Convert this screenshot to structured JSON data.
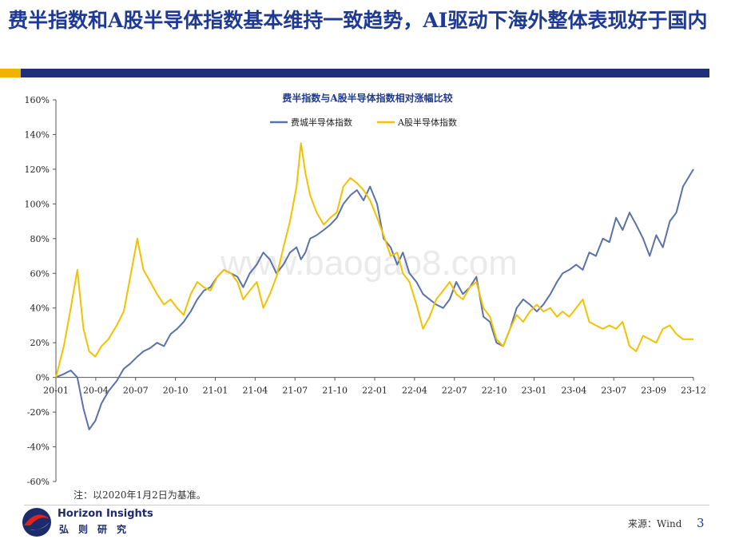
{
  "header": {
    "title": "费半指数和A股半导体指数基本维持一致趋势，AI驱动下海外整体表现好于国内"
  },
  "chart_data": {
    "type": "line",
    "title": "费半指数与A股半导体指数相对涨幅比较",
    "xlabel": "",
    "ylabel": "",
    "ylim": [
      -60,
      160
    ],
    "y_unit": "%",
    "y_ticks": [
      "160%",
      "140%",
      "120%",
      "100%",
      "80%",
      "60%",
      "40%",
      "20%",
      "0%",
      "-20%",
      "-40%",
      "-60%"
    ],
    "x_ticks": [
      "20-01",
      "20-04",
      "20-07",
      "20-10",
      "21-01",
      "21-04",
      "21-07",
      "21-10",
      "22-01",
      "22-04",
      "22-07",
      "22-10",
      "23-01",
      "23-04",
      "23-07",
      "23-09",
      "23-12"
    ],
    "legend_position": "top-center",
    "grid": false,
    "x_dates": [
      "2020-01-02",
      "2020-01-20",
      "2020-02-05",
      "2020-02-20",
      "2020-03-05",
      "2020-03-18",
      "2020-04-01",
      "2020-04-15",
      "2020-05-01",
      "2020-05-20",
      "2020-06-05",
      "2020-06-20",
      "2020-07-06",
      "2020-07-20",
      "2020-08-05",
      "2020-08-20",
      "2020-09-05",
      "2020-09-20",
      "2020-10-05",
      "2020-10-20",
      "2020-11-05",
      "2020-11-20",
      "2020-12-05",
      "2020-12-20",
      "2021-01-05",
      "2021-01-20",
      "2021-02-05",
      "2021-02-20",
      "2021-03-05",
      "2021-03-20",
      "2021-04-05",
      "2021-04-20",
      "2021-05-05",
      "2021-05-20",
      "2021-06-05",
      "2021-06-20",
      "2021-07-05",
      "2021-07-15",
      "2021-07-25",
      "2021-08-05",
      "2021-08-20",
      "2021-09-05",
      "2021-09-20",
      "2021-10-05",
      "2021-10-20",
      "2021-11-05",
      "2021-11-20",
      "2021-12-05",
      "2021-12-20",
      "2022-01-05",
      "2022-01-20",
      "2022-02-05",
      "2022-02-20",
      "2022-03-05",
      "2022-03-20",
      "2022-04-05",
      "2022-04-20",
      "2022-05-05",
      "2022-05-20",
      "2022-06-05",
      "2022-06-20",
      "2022-07-05",
      "2022-07-20",
      "2022-08-05",
      "2022-08-20",
      "2022-09-05",
      "2022-09-20",
      "2022-10-05",
      "2022-10-20",
      "2022-11-05",
      "2022-11-20",
      "2022-12-05",
      "2022-12-20",
      "2023-01-05",
      "2023-01-20",
      "2023-02-05",
      "2023-02-20",
      "2023-03-05",
      "2023-03-20",
      "2023-04-05",
      "2023-04-20",
      "2023-05-05",
      "2023-05-20",
      "2023-06-05",
      "2023-06-20",
      "2023-07-05",
      "2023-07-20",
      "2023-08-05",
      "2023-08-20",
      "2023-09-05",
      "2023-09-20",
      "2023-10-05",
      "2023-10-20",
      "2023-11-05",
      "2023-11-20",
      "2023-12-05",
      "2023-12-29"
    ],
    "series": [
      {
        "name": "费城半导体指数",
        "color": "#5a72a8",
        "values": [
          0,
          2,
          4,
          0,
          -18,
          -30,
          -25,
          -15,
          -8,
          -2,
          5,
          8,
          12,
          15,
          17,
          20,
          18,
          25,
          28,
          32,
          38,
          45,
          50,
          52,
          58,
          62,
          60,
          58,
          52,
          60,
          65,
          72,
          68,
          60,
          65,
          72,
          75,
          68,
          72,
          80,
          82,
          85,
          88,
          92,
          100,
          105,
          108,
          102,
          110,
          100,
          80,
          75,
          65,
          72,
          60,
          55,
          48,
          45,
          42,
          40,
          45,
          55,
          48,
          52,
          58,
          35,
          32,
          20,
          18,
          28,
          40,
          45,
          42,
          38,
          42,
          48,
          55,
          60,
          62,
          65,
          62,
          72,
          70,
          80,
          78,
          92,
          85,
          95,
          88,
          80,
          70,
          82,
          75,
          90,
          95,
          110,
          120
        ]
      },
      {
        "name": "A股半导体指数",
        "color": "#f2c200",
        "values": [
          0,
          18,
          40,
          62,
          28,
          15,
          12,
          18,
          22,
          30,
          38,
          58,
          80,
          62,
          55,
          48,
          42,
          45,
          40,
          36,
          48,
          55,
          52,
          50,
          58,
          62,
          60,
          55,
          45,
          50,
          55,
          40,
          48,
          58,
          75,
          90,
          110,
          135,
          118,
          105,
          95,
          88,
          92,
          95,
          110,
          115,
          112,
          108,
          102,
          92,
          82,
          70,
          72,
          60,
          55,
          42,
          28,
          35,
          45,
          50,
          55,
          48,
          45,
          52,
          55,
          40,
          35,
          22,
          18,
          28,
          36,
          32,
          38,
          42,
          38,
          40,
          35,
          38,
          35,
          40,
          45,
          32,
          30,
          28,
          30,
          28,
          32,
          18,
          15,
          24,
          22,
          20,
          28,
          30,
          25,
          22,
          22
        ]
      }
    ]
  },
  "note": "注：以2020年1月2日为基准。",
  "watermark": "www.baogao8.com",
  "logo": {
    "en": "Horizon Insights",
    "cn": "弘则研究"
  },
  "footer": {
    "source": "来源：Wind",
    "page_number": "3"
  }
}
